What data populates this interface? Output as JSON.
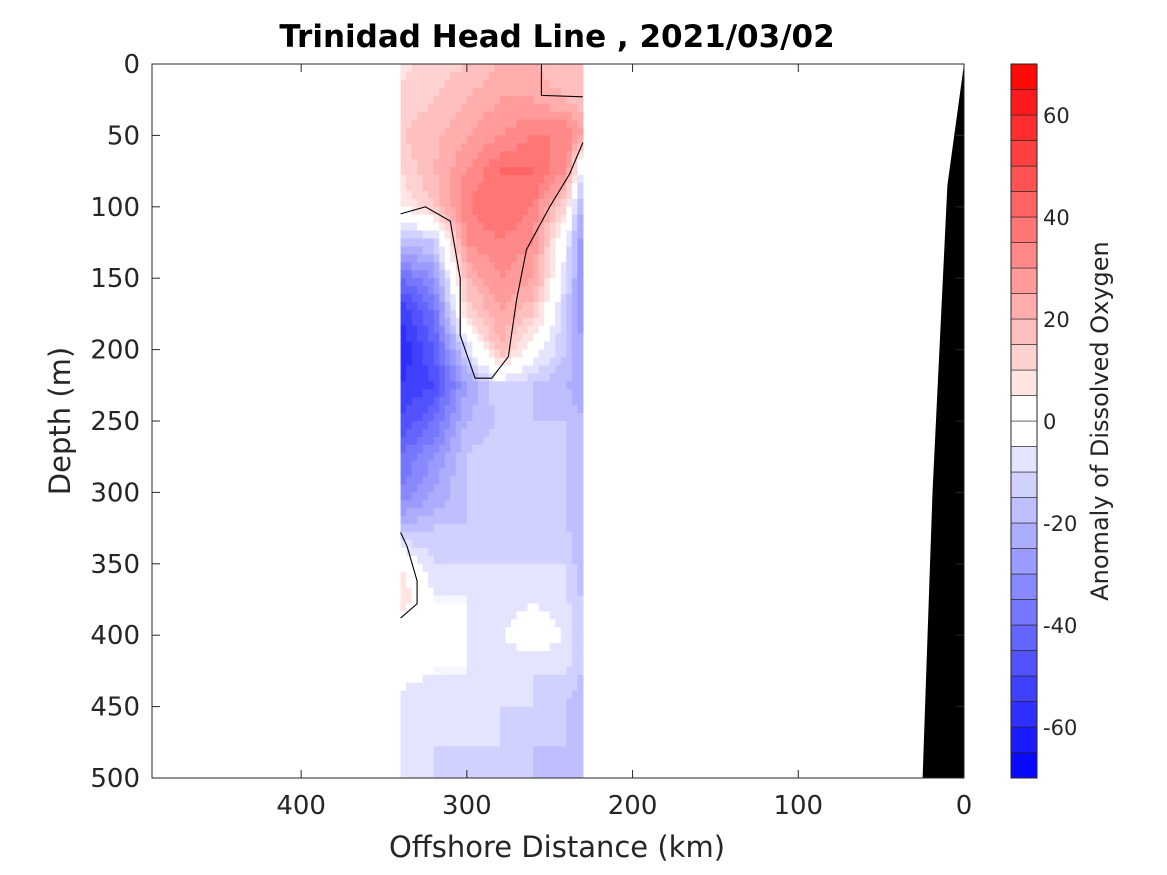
{
  "chart_data": {
    "type": "heatmap",
    "title": "Trinidad Head Line , 2021/03/02",
    "xlabel": "Offshore Distance (km)",
    "ylabel": "Depth (m)",
    "xlim": [
      490,
      0
    ],
    "ylim": [
      0,
      500
    ],
    "x_reversed": true,
    "y_reversed": true,
    "xticks": [
      "400",
      "300",
      "200",
      "100",
      "0"
    ],
    "yticks": [
      "0",
      "50",
      "100",
      "150",
      "200",
      "250",
      "300",
      "350",
      "400",
      "450",
      "500"
    ],
    "colorbar": {
      "label": "Anomaly of Dissolved Oxygen",
      "range": [
        -70,
        70
      ],
      "step": 5,
      "ticks": [
        "60",
        "40",
        "20",
        "0",
        "-20",
        "-40",
        "-60"
      ],
      "low_color": "#0000ff",
      "mid_color": "#ffffff",
      "high_color": "#ff0000"
    },
    "x": [
      340,
      320,
      300,
      280,
      260,
      240,
      230
    ],
    "depth": [
      0,
      25,
      50,
      75,
      100,
      125,
      150,
      175,
      200,
      225,
      250,
      275,
      300,
      325,
      350,
      375,
      400,
      425,
      450,
      475,
      500
    ],
    "z": [
      [
        8,
        12,
        15,
        20,
        20,
        15,
        15
      ],
      [
        12,
        15,
        20,
        25,
        25,
        20,
        15
      ],
      [
        15,
        18,
        25,
        30,
        35,
        35,
        25
      ],
      [
        10,
        20,
        30,
        40,
        40,
        30,
        -10
      ],
      [
        5,
        15,
        35,
        40,
        35,
        10,
        -25
      ],
      [
        -20,
        -15,
        30,
        35,
        30,
        -5,
        -30
      ],
      [
        -40,
        -30,
        20,
        30,
        25,
        -10,
        -30
      ],
      [
        -55,
        -40,
        10,
        25,
        15,
        -15,
        -30
      ],
      [
        -60,
        -45,
        -10,
        20,
        0,
        -15,
        -25
      ],
      [
        -55,
        -50,
        -25,
        -10,
        -15,
        -20,
        -25
      ],
      [
        -50,
        -40,
        -20,
        -15,
        -15,
        -15,
        -20
      ],
      [
        -40,
        -30,
        -15,
        -10,
        -12,
        -15,
        -20
      ],
      [
        -35,
        -25,
        -15,
        -15,
        -15,
        -15,
        -20
      ],
      [
        -20,
        -15,
        -15,
        -15,
        -12,
        -15,
        -20
      ],
      [
        5,
        -10,
        -10,
        -10,
        -10,
        -10,
        -20
      ],
      [
        10,
        -5,
        -5,
        -10,
        -5,
        -10,
        -15
      ],
      [
        0,
        0,
        -5,
        -5,
        0,
        -5,
        -15
      ],
      [
        0,
        -5,
        -5,
        -10,
        -10,
        -10,
        -15
      ],
      [
        -10,
        -10,
        -10,
        -10,
        -10,
        -15,
        -20
      ],
      [
        -10,
        -10,
        -10,
        -10,
        -15,
        -15,
        -20
      ],
      [
        -10,
        -10,
        -15,
        -15,
        -15,
        -20,
        -20
      ]
    ],
    "zero_contours": [
      [
        [
          340,
          105
        ],
        [
          325,
          100
        ],
        [
          310,
          110
        ],
        [
          304,
          150
        ],
        [
          304,
          190
        ],
        [
          295,
          220
        ],
        [
          285,
          220
        ],
        [
          275,
          205
        ],
        [
          270,
          165
        ],
        [
          264,
          130
        ],
        [
          250,
          100
        ],
        [
          238,
          77
        ],
        [
          230,
          55
        ]
      ],
      [
        [
          255,
          0
        ],
        [
          255,
          22
        ],
        [
          230,
          23
        ]
      ],
      [
        [
          340,
          328
        ],
        [
          336,
          338
        ],
        [
          330,
          362
        ],
        [
          330,
          378
        ],
        [
          340,
          388
        ]
      ]
    ],
    "bathymetry": [
      [
        0,
        0
      ],
      [
        10,
        85
      ],
      [
        19,
        300
      ],
      [
        25,
        500
      ]
    ]
  }
}
